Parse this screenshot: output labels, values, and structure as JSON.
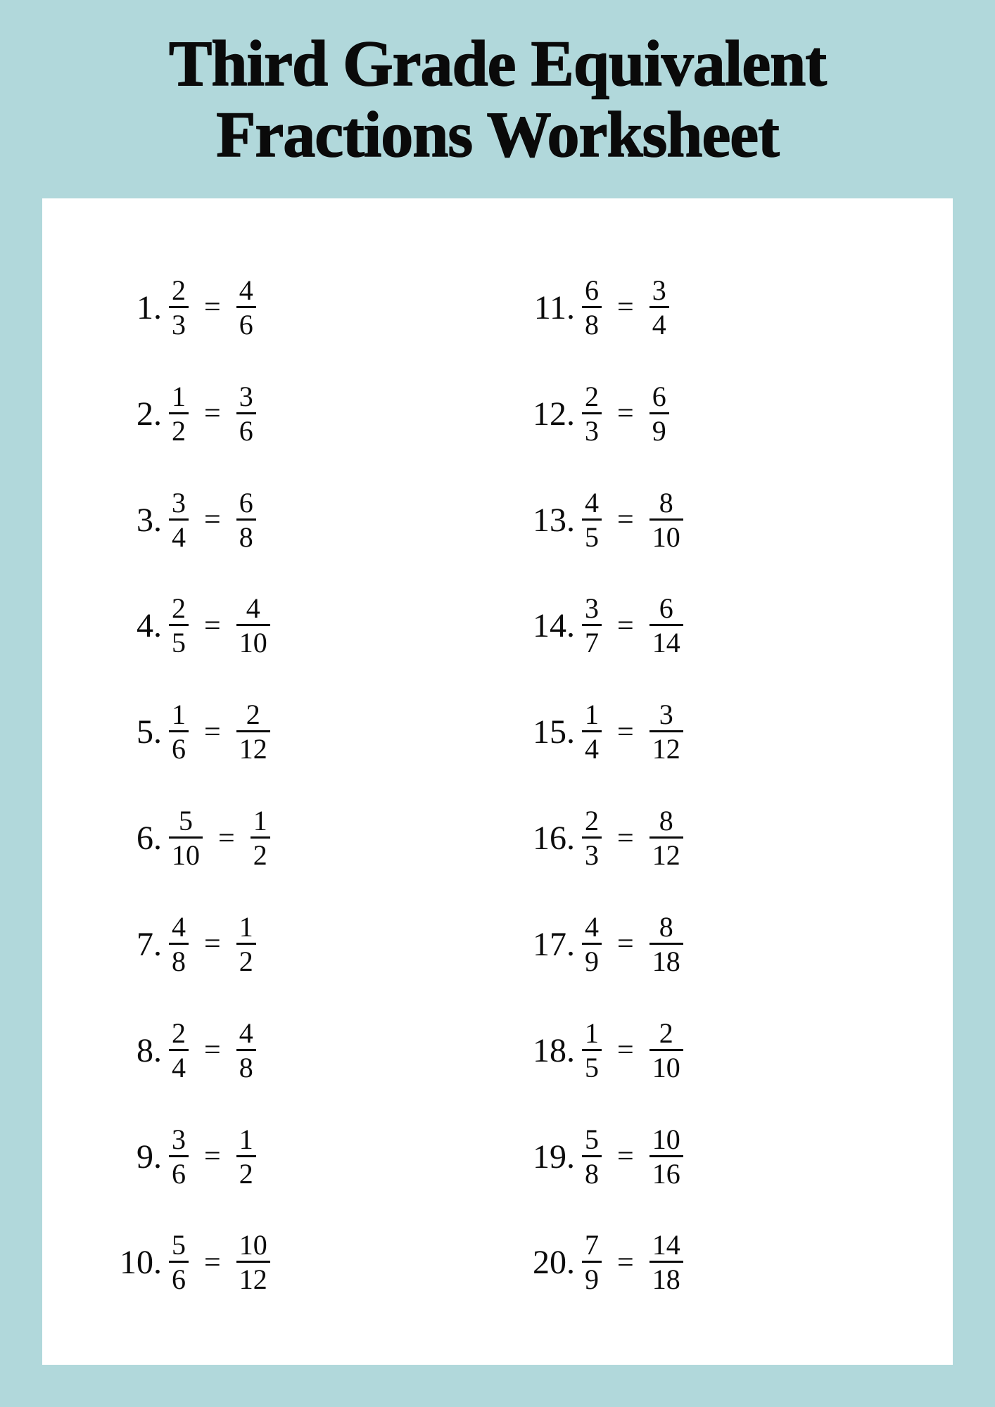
{
  "title": "Third Grade Equivalent Fractions Worksheet",
  "colors": {
    "page_bg": "#b1d8db",
    "sheet_bg": "#ffffff",
    "text": "#0b0b0b"
  },
  "typography": {
    "title_fontsize": 92,
    "title_weight": 900,
    "number_fontsize": 48,
    "fraction_fontsize": 40,
    "equals_fontsize": 42
  },
  "equals": "=",
  "problems": [
    {
      "n": "1.",
      "a_num": "2",
      "a_den": "3",
      "b_num": "4",
      "b_den": "6"
    },
    {
      "n": "2.",
      "a_num": "1",
      "a_den": "2",
      "b_num": "3",
      "b_den": "6"
    },
    {
      "n": "3.",
      "a_num": "3",
      "a_den": "4",
      "b_num": "6",
      "b_den": "8"
    },
    {
      "n": "4.",
      "a_num": "2",
      "a_den": "5",
      "b_num": "4",
      "b_den": "10"
    },
    {
      "n": "5.",
      "a_num": "1",
      "a_den": "6",
      "b_num": "2",
      "b_den": "12"
    },
    {
      "n": "6.",
      "a_num": "5",
      "a_den": "10",
      "b_num": "1",
      "b_den": "2"
    },
    {
      "n": "7.",
      "a_num": "4",
      "a_den": "8",
      "b_num": "1",
      "b_den": "2"
    },
    {
      "n": "8.",
      "a_num": "2",
      "a_den": "4",
      "b_num": "4",
      "b_den": "8"
    },
    {
      "n": "9.",
      "a_num": "3",
      "a_den": "6",
      "b_num": "1",
      "b_den": "2"
    },
    {
      "n": "10.",
      "a_num": "5",
      "a_den": "6",
      "b_num": "10",
      "b_den": "12"
    },
    {
      "n": "11.",
      "a_num": "6",
      "a_den": "8",
      "b_num": "3",
      "b_den": "4"
    },
    {
      "n": "12.",
      "a_num": "2",
      "a_den": "3",
      "b_num": "6",
      "b_den": "9"
    },
    {
      "n": "13.",
      "a_num": "4",
      "a_den": "5",
      "b_num": "8",
      "b_den": "10"
    },
    {
      "n": "14.",
      "a_num": "3",
      "a_den": "7",
      "b_num": "6",
      "b_den": "14"
    },
    {
      "n": "15.",
      "a_num": "1",
      "a_den": "4",
      "b_num": "3",
      "b_den": "12"
    },
    {
      "n": "16.",
      "a_num": "2",
      "a_den": "3",
      "b_num": "8",
      "b_den": "12"
    },
    {
      "n": "17.",
      "a_num": "4",
      "a_den": "9",
      "b_num": "8",
      "b_den": "18"
    },
    {
      "n": "18.",
      "a_num": "1",
      "a_den": "5",
      "b_num": "2",
      "b_den": "10"
    },
    {
      "n": "19.",
      "a_num": "5",
      "a_den": "8",
      "b_num": "10",
      "b_den": "16"
    },
    {
      "n": "20.",
      "a_num": "7",
      "a_den": "9",
      "b_num": "14",
      "b_den": "18"
    }
  ]
}
